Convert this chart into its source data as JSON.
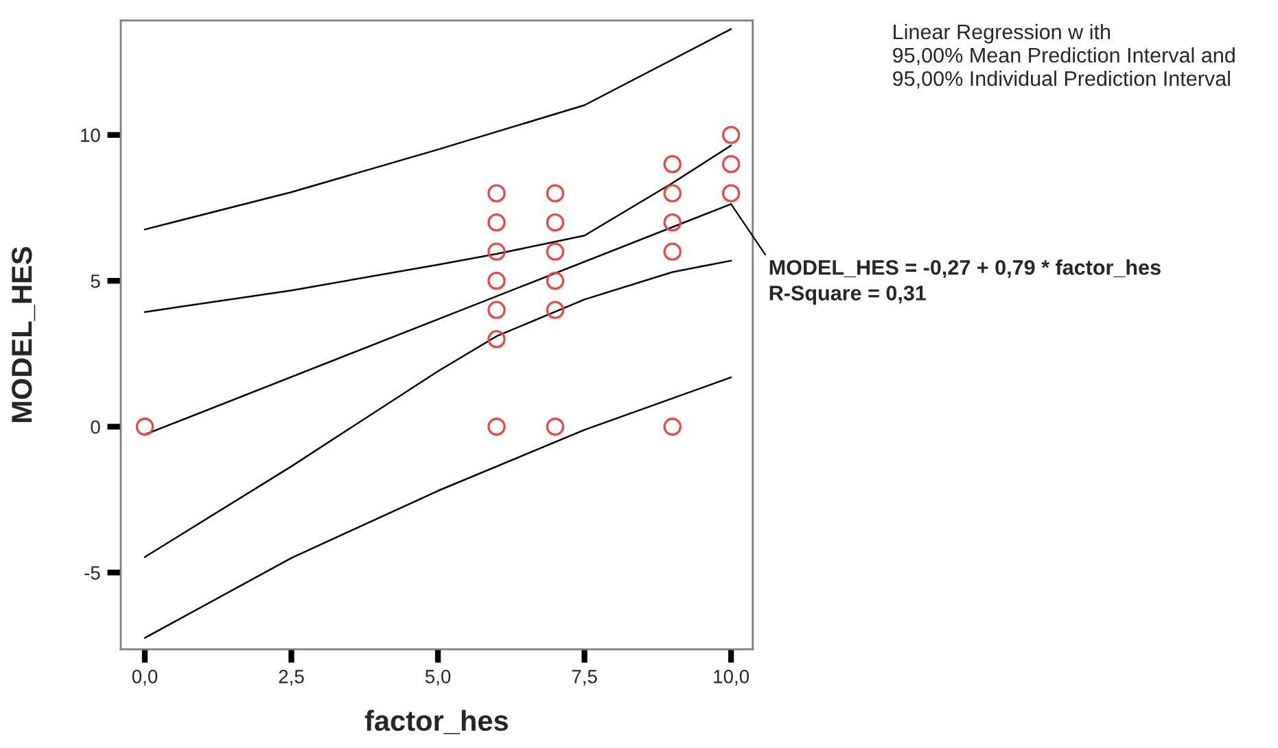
{
  "chart_data": {
    "type": "scatter",
    "xlabel": "factor_hes",
    "ylabel": "MODEL_HES",
    "xlim": [
      -0.41,
      10.37
    ],
    "ylim": [
      -7.63,
      13.92
    ],
    "xticks": [
      {
        "value": 0,
        "label": "0,0"
      },
      {
        "value": 2.5,
        "label": "2,5"
      },
      {
        "value": 5,
        "label": "5,0"
      },
      {
        "value": 7.5,
        "label": "7,5"
      },
      {
        "value": 10,
        "label": "10,0"
      }
    ],
    "yticks": [
      -5,
      0,
      5,
      10
    ],
    "grid": false,
    "legend": false,
    "series": [
      {
        "marker": "circle",
        "color": "#ff3b3b",
        "x": [
          0,
          6,
          6,
          6,
          6,
          6,
          6,
          6,
          7,
          7,
          7,
          7,
          7,
          7,
          9,
          9,
          9,
          9,
          9,
          10,
          10,
          10
        ],
        "values": [
          0,
          0,
          3,
          4,
          5,
          6,
          7,
          8,
          0,
          4,
          5,
          6,
          7,
          8,
          0,
          6,
          7,
          8,
          9,
          8,
          9,
          10
        ]
      },
      {
        "type": "line",
        "color": "#000000",
        "x": [
          0,
          10
        ],
        "values": [
          -0.27,
          7.63
        ]
      },
      {
        "type": "line",
        "color": "#000000",
        "x": [
          0,
          2.5,
          5,
          6,
          7.5,
          9,
          10
        ],
        "values": [
          3.93,
          4.67,
          5.55,
          5.92,
          6.55,
          8.35,
          9.64
        ]
      },
      {
        "type": "line",
        "color": "#000000",
        "x": [
          0,
          2.5,
          5,
          6,
          7.5,
          9,
          10
        ],
        "values": [
          -4.47,
          -1.36,
          1.9,
          3.1,
          4.36,
          5.3,
          5.69
        ]
      },
      {
        "type": "line",
        "color": "#000000",
        "x": [
          0,
          2.5,
          5,
          7.5,
          10
        ],
        "values": [
          6.76,
          8.04,
          9.5,
          11.02,
          13.63
        ]
      },
      {
        "type": "line",
        "color": "#000000",
        "x": [
          0,
          2.5,
          5,
          7.5,
          10
        ],
        "values": [
          -7.24,
          -4.5,
          -2.2,
          -0.11,
          1.69
        ]
      }
    ],
    "annotations": [
      "Linear Regression w ith\n95,00% Mean Prediction Interval and\n95,00% Individual Prediction Interval",
      {
        "text": "MODEL_HES = -0,27 + 0,79 * factor_hes\nR-Square = 0,31",
        "x": 10,
        "y": 7.63
      }
    ]
  }
}
